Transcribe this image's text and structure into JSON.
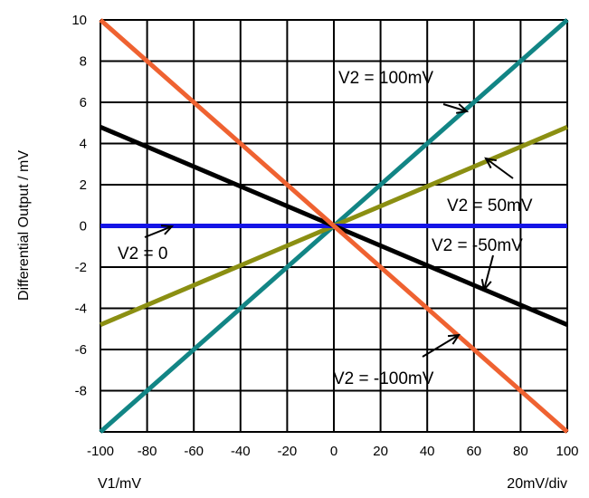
{
  "chart_data": {
    "type": "line",
    "title": "",
    "xlabel": "V1/mV",
    "x_scale_note": "20mV/div",
    "ylabel": "Differential Output / mV",
    "xlim": [
      -100,
      100
    ],
    "ylim": [
      -10,
      10
    ],
    "x_ticks": [
      "-100",
      "-80",
      "-60",
      "-40",
      "-20",
      "0",
      "20",
      "40",
      "60",
      "80",
      "100"
    ],
    "y_ticks": [
      "10",
      "8",
      "6",
      "4",
      "2",
      "0",
      "-2",
      "-4",
      "-6",
      "-8"
    ],
    "grid": true,
    "series": [
      {
        "name": "V2 = 100mV",
        "color": "#128585",
        "x": [
          -100,
          100
        ],
        "y": [
          -10,
          10
        ]
      },
      {
        "name": "V2 = 50mV",
        "color": "#8b8f12",
        "x": [
          -100,
          100
        ],
        "y": [
          -4.8,
          4.8
        ]
      },
      {
        "name": "V2 = 0",
        "color": "#1414e6",
        "x": [
          -100,
          100
        ],
        "y": [
          0,
          0
        ]
      },
      {
        "name": "V2 = -50mV",
        "color": "#000000",
        "x": [
          -100,
          100
        ],
        "y": [
          4.8,
          -4.8
        ]
      },
      {
        "name": "V2 = -100mV",
        "color": "#ef6231",
        "x": [
          -100,
          100
        ],
        "y": [
          10,
          -10
        ]
      }
    ],
    "annotations": [
      {
        "text": "V2 = 100mV"
      },
      {
        "text": "V2 = 50mV"
      },
      {
        "text": "V2 = 0"
      },
      {
        "text": "V2 = -50mV"
      },
      {
        "text": "V2 = -100mV"
      }
    ]
  }
}
